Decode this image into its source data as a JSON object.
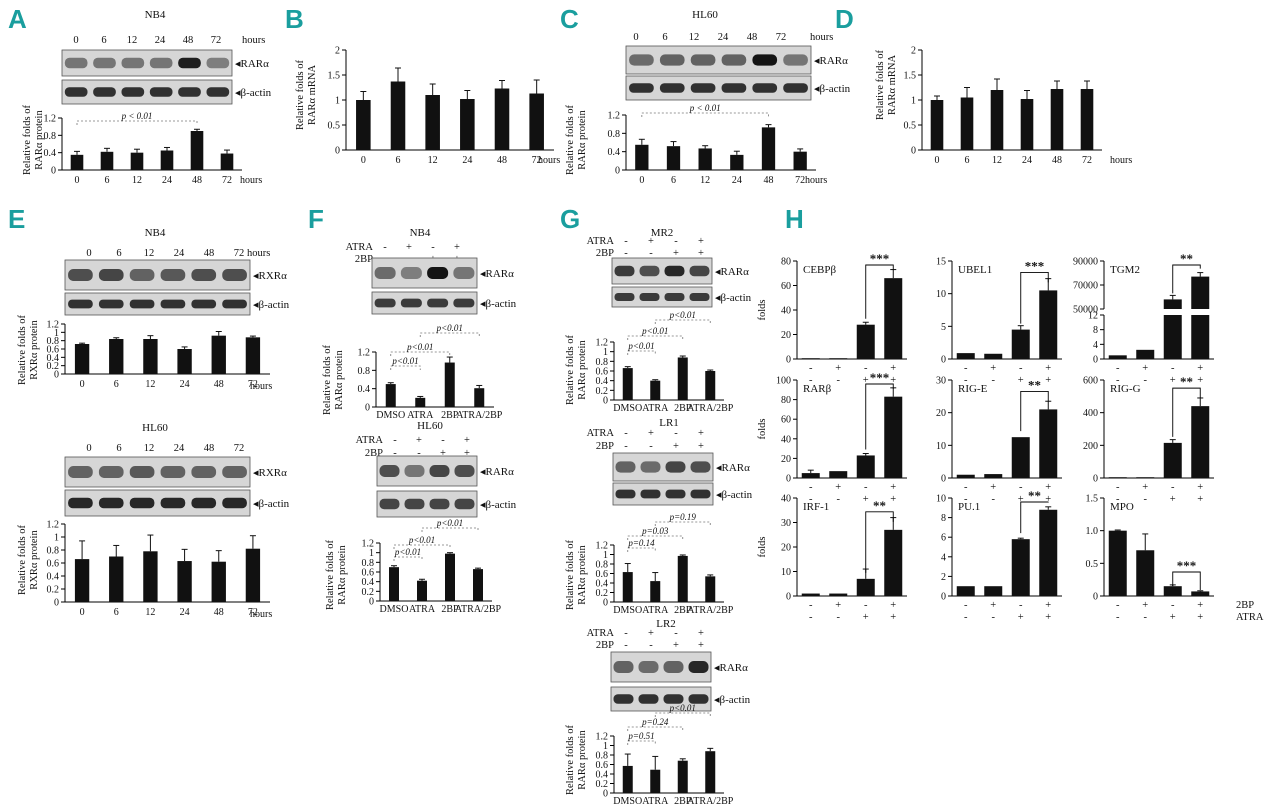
{
  "figure": {
    "panel_labels": {
      "A": "A",
      "B": "B",
      "C": "C",
      "D": "D",
      "E": "E",
      "F": "F",
      "G": "G",
      "H": "H"
    },
    "common": {
      "hours_unit": "hours",
      "band_target": "◂RARα",
      "band_actin": "◂β-actin",
      "band_rxr": "◂RXRα",
      "atra": "ATRA",
      "twobp": "2BP",
      "minus": "-",
      "plus": "+",
      "ylabel_rar_protein": [
        "Relative folds of",
        "RARα protein"
      ],
      "ylabel_rar_mrna": [
        "Relative folds of",
        "RARα mRNA"
      ],
      "ylabel_rxr_protein": [
        "Relative folds of",
        "RXRα protein"
      ],
      "ylabel_folds": "folds",
      "time_ticks": [
        "0",
        "6",
        "12",
        "24",
        "48",
        "72"
      ],
      "time_ticks_blot": [
        "0",
        "6",
        "12",
        "24",
        "48",
        "72"
      ],
      "cond_ticks": [
        "DMSO",
        "ATRA",
        "2BP",
        "ATRA/2BP"
      ]
    },
    "A": {
      "cell": "NB4",
      "pvalue": "p < 0.01"
    },
    "C": {
      "cell": "HL60",
      "pvalue": "p < 0.01"
    },
    "E": {
      "cell1": "NB4",
      "cell2": "HL60"
    },
    "F": {
      "cell1": "NB4",
      "cell2": "HL60",
      "p1": [
        "p<0.01",
        "p<0.01",
        "p<0.01"
      ],
      "p2": [
        "p<0.01",
        "p<0.01",
        "p<0.01"
      ]
    },
    "G": {
      "cell1": "MR2",
      "cell2": "LR1",
      "cell3": "LR2",
      "p1": [
        "p<0.01",
        "p<0.01",
        "p<0.01"
      ],
      "p2": [
        "p=0.14",
        "p=0.03",
        "p=0.19"
      ],
      "p3": [
        "p=0.51",
        "p=0.24",
        "p<0.01"
      ]
    },
    "H": {
      "row_2bp": "2BP",
      "row_atra": "ATRA",
      "cols_2bp": [
        "-",
        "+",
        "-",
        "+"
      ],
      "cols_atra": [
        "-",
        "-",
        "+",
        "+"
      ]
    }
  },
  "chart_data": [
    {
      "id": "A",
      "type": "bar",
      "title": "NB4",
      "categories": [
        "0",
        "6",
        "12",
        "24",
        "48",
        "72"
      ],
      "values": [
        0.35,
        0.42,
        0.4,
        0.45,
        0.9,
        0.38
      ],
      "errors": [
        0.08,
        0.08,
        0.08,
        0.07,
        0.04,
        0.08
      ],
      "ylim": [
        0,
        1.2
      ],
      "yticks": [
        "0",
        "0.4",
        "0.8",
        "1.2"
      ],
      "ylabel": "Relative folds of RARα protein"
    },
    {
      "id": "B",
      "type": "bar",
      "categories": [
        "0",
        "6",
        "12",
        "24",
        "48",
        "72"
      ],
      "values": [
        1.0,
        1.37,
        1.1,
        1.02,
        1.23,
        1.13
      ],
      "errors": [
        0.17,
        0.27,
        0.22,
        0.17,
        0.16,
        0.27
      ],
      "ylim": [
        0,
        2
      ],
      "yticks": [
        "0",
        "0.5",
        "1",
        "1.5",
        "2"
      ],
      "ylabel": "Relative folds of RARα mRNA"
    },
    {
      "id": "C",
      "type": "bar",
      "title": "HL60",
      "categories": [
        "0",
        "6",
        "12",
        "24",
        "48",
        "72"
      ],
      "values": [
        0.55,
        0.52,
        0.47,
        0.33,
        0.93,
        0.4
      ],
      "errors": [
        0.12,
        0.1,
        0.06,
        0.08,
        0.06,
        0.06
      ],
      "ylim": [
        0,
        1.2
      ],
      "yticks": [
        "0",
        "0.4",
        "0.8",
        "1.2"
      ],
      "ylabel": "Relative folds of RARα protein"
    },
    {
      "id": "D",
      "type": "bar",
      "categories": [
        "0",
        "6",
        "12",
        "24",
        "48",
        "72"
      ],
      "values": [
        1.0,
        1.05,
        1.2,
        1.02,
        1.22,
        1.22
      ],
      "errors": [
        0.08,
        0.2,
        0.22,
        0.17,
        0.16,
        0.16
      ],
      "ylim": [
        0,
        2
      ],
      "yticks": [
        "0",
        "0.5",
        "1",
        "1.5",
        "2"
      ],
      "ylabel": "Relative folds of RARα mRNA"
    },
    {
      "id": "E1",
      "type": "bar",
      "title": "NB4",
      "categories": [
        "0",
        "6",
        "12",
        "24",
        "48",
        "72"
      ],
      "values": [
        0.72,
        0.84,
        0.84,
        0.6,
        0.92,
        0.88
      ],
      "errors": [
        0.02,
        0.03,
        0.08,
        0.05,
        0.1,
        0.03
      ],
      "ylim": [
        0,
        1.2
      ],
      "yticks": [
        "0",
        "0.2",
        "0.4",
        "0.6",
        "0.8",
        "1",
        "1.2"
      ],
      "ylabel": "Relative folds of RXRα protein"
    },
    {
      "id": "E2",
      "type": "bar",
      "title": "HL60",
      "categories": [
        "0",
        "6",
        "12",
        "24",
        "48",
        "72"
      ],
      "values": [
        0.66,
        0.7,
        0.78,
        0.63,
        0.62,
        0.82
      ],
      "errors": [
        0.28,
        0.17,
        0.25,
        0.18,
        0.17,
        0.2
      ],
      "ylim": [
        0,
        1.2
      ],
      "yticks": [
        "0",
        "0.2",
        "0.4",
        "0.6",
        "0.8",
        "1",
        "1.2"
      ],
      "ylabel": "Relative folds of RXRα protein"
    },
    {
      "id": "F1",
      "type": "bar",
      "title": "NB4",
      "categories": [
        "DMSO",
        "ATRA",
        "2BP",
        "ATRA/2BP"
      ],
      "values": [
        0.5,
        0.2,
        0.97,
        0.41
      ],
      "errors": [
        0.03,
        0.03,
        0.12,
        0.06
      ],
      "ylim": [
        0,
        1.2
      ],
      "yticks": [
        "0",
        "0.4",
        "0.8",
        "1.2"
      ],
      "ylabel": "Relative folds of RARα protein"
    },
    {
      "id": "F2",
      "type": "bar",
      "title": "HL60",
      "categories": [
        "DMSO",
        "ATRA",
        "2BP",
        "ATRA/2BP"
      ],
      "values": [
        0.7,
        0.42,
        0.98,
        0.66
      ],
      "errors": [
        0.03,
        0.03,
        0.02,
        0.02
      ],
      "ylim": [
        0,
        1.2
      ],
      "yticks": [
        "0",
        "0.2",
        "0.4",
        "0.6",
        "0.8",
        "1",
        "1.2"
      ],
      "ylabel": "Relative folds of RARα protein"
    },
    {
      "id": "G1",
      "type": "bar",
      "title": "MR2",
      "categories": [
        "DMSO",
        "ATRA",
        "2BP",
        "ATRA/2BP"
      ],
      "values": [
        0.66,
        0.4,
        0.88,
        0.6
      ],
      "errors": [
        0.03,
        0.02,
        0.03,
        0.02
      ],
      "ylim": [
        0,
        1.2
      ],
      "yticks": [
        "0",
        "0.2",
        "0.4",
        "0.6",
        "0.8",
        "1",
        "1.2"
      ],
      "ylabel": "Relative folds of RARα protein"
    },
    {
      "id": "G2",
      "type": "bar",
      "title": "LR1",
      "categories": [
        "DMSO",
        "ATRA",
        "2BP",
        "ATRA/2BP"
      ],
      "values": [
        0.63,
        0.44,
        0.97,
        0.54
      ],
      "errors": [
        0.18,
        0.18,
        0.02,
        0.03
      ],
      "ylim": [
        0,
        1.2
      ],
      "yticks": [
        "0",
        "0.2",
        "0.4",
        "0.6",
        "0.8",
        "1",
        "1.2"
      ],
      "ylabel": "Relative folds of RARα protein"
    },
    {
      "id": "G3",
      "type": "bar",
      "title": "LR2",
      "categories": [
        "DMSO",
        "ATRA",
        "2BP",
        "ATRA/2BP"
      ],
      "values": [
        0.57,
        0.49,
        0.68,
        0.88
      ],
      "errors": [
        0.25,
        0.28,
        0.04,
        0.06
      ],
      "ylim": [
        0,
        1.2
      ],
      "yticks": [
        "0",
        "0.2",
        "0.4",
        "0.6",
        "0.8",
        "1",
        "1.2"
      ],
      "ylabel": "Relative folds of RARα protein"
    },
    {
      "id": "H1",
      "type": "bar",
      "title": "CEBPβ",
      "values": [
        0.5,
        0.5,
        28,
        66
      ],
      "errors": [
        0,
        0,
        2,
        7
      ],
      "ylim": [
        0,
        80
      ],
      "yticks": [
        "0",
        "20",
        "40",
        "60",
        "80"
      ],
      "sig": "***",
      "ylabel": "folds"
    },
    {
      "id": "H2",
      "type": "bar",
      "title": "UBEL1",
      "values": [
        0.9,
        0.8,
        4.5,
        10.5
      ],
      "errors": [
        0,
        0,
        0.6,
        1.8
      ],
      "ylim": [
        0,
        15
      ],
      "yticks": [
        "0",
        "5",
        "10",
        "15"
      ],
      "sig": "***"
    },
    {
      "id": "H3",
      "type": "bar",
      "title": "TGM2",
      "values": [
        1,
        2.5,
        58000,
        77000
      ],
      "errors": [
        0,
        0,
        3000,
        3000
      ],
      "yticks_upper": [
        "50000",
        "70000",
        "90000"
      ],
      "yticks_lower": [
        "0",
        "4",
        "8",
        "12"
      ],
      "sig": "**"
    },
    {
      "id": "H4",
      "type": "bar",
      "title": "RARβ",
      "values": [
        5,
        7,
        23,
        83
      ],
      "errors": [
        3,
        0,
        2,
        9
      ],
      "ylim": [
        0,
        100
      ],
      "yticks": [
        "0",
        "20",
        "40",
        "60",
        "80",
        "100"
      ],
      "sig": "***",
      "ylabel": "folds"
    },
    {
      "id": "H5",
      "type": "bar",
      "title": "RIG-E",
      "values": [
        1,
        1.2,
        12.5,
        21
      ],
      "errors": [
        0,
        0,
        0,
        2.5
      ],
      "ylim": [
        0,
        30
      ],
      "yticks": [
        "0",
        "10",
        "20",
        "30"
      ],
      "sig": "**"
    },
    {
      "id": "H6",
      "type": "bar",
      "title": "RIG-G",
      "values": [
        1,
        1,
        215,
        440
      ],
      "errors": [
        0,
        0,
        20,
        50
      ],
      "ylim": [
        0,
        600
      ],
      "yticks": [
        "0",
        "200",
        "400",
        "600"
      ],
      "sig": "**"
    },
    {
      "id": "H7",
      "type": "bar",
      "title": "IRF-1",
      "values": [
        1,
        1,
        7,
        27
      ],
      "errors": [
        0,
        0,
        4,
        5
      ],
      "ylim": [
        0,
        40
      ],
      "yticks": [
        "0",
        "10",
        "20",
        "30",
        "40"
      ],
      "sig": "**",
      "ylabel": "folds"
    },
    {
      "id": "H8",
      "type": "bar",
      "title": "PU.1",
      "values": [
        1,
        1,
        5.8,
        8.8
      ],
      "errors": [
        0,
        0,
        0.1,
        0.3
      ],
      "ylim": [
        0,
        10
      ],
      "yticks": [
        "0",
        "2",
        "4",
        "6",
        "8",
        "10"
      ],
      "sig": "**"
    },
    {
      "id": "H9",
      "type": "bar",
      "title": "MPO",
      "values": [
        1,
        0.7,
        0.15,
        0.07
      ],
      "errors": [
        0.01,
        0.25,
        0.02,
        0.01
      ],
      "ylim": [
        0,
        1.5
      ],
      "yticks": [
        "0",
        "0.5",
        "1.0",
        "1.5"
      ],
      "sig": "***"
    }
  ]
}
